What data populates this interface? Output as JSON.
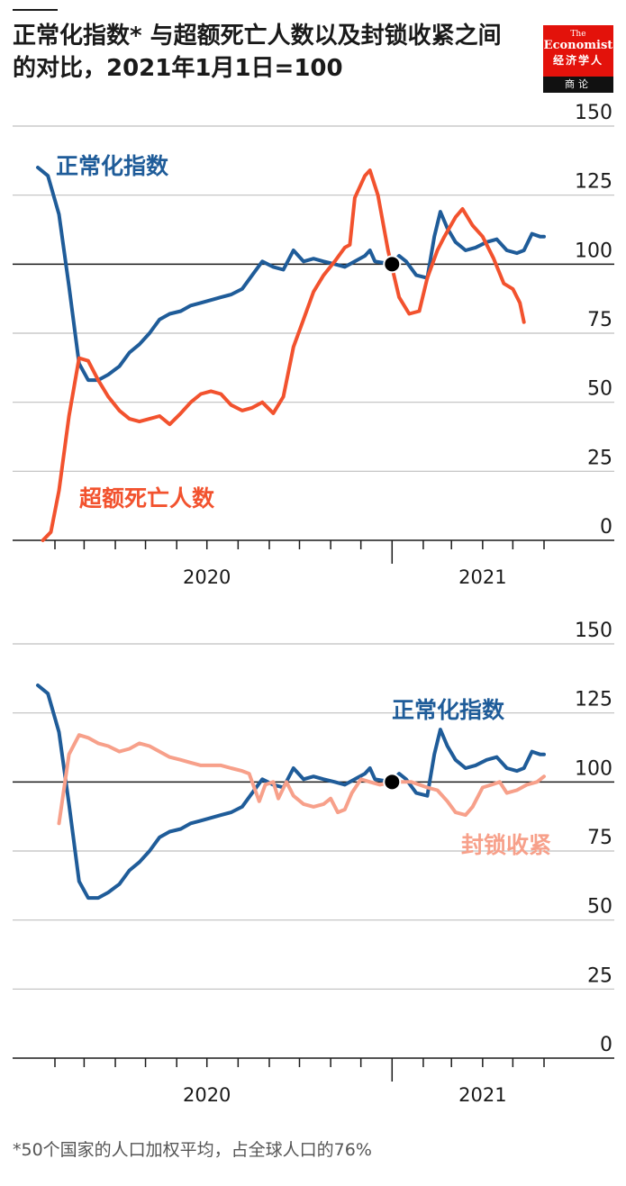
{
  "title": "正常化指数* 与超额死亡人数以及封锁收紧之间的对比，2021年1月1日=100",
  "logo": {
    "line1": "The",
    "line2": "Economist",
    "line3": "经济学人",
    "line4": "商论"
  },
  "footnote": "*50个国家的人口加权平均，占全球人口的76%",
  "colors": {
    "normalcy": "#1f5c99",
    "excess_deaths": "#f2522e",
    "lockdown": "#f7a08a",
    "axis": "#1a1a1a",
    "grid": "#bfbfbf"
  },
  "chart_data": [
    {
      "type": "line",
      "yticks": [
        0,
        25,
        50,
        75,
        100,
        125,
        150
      ],
      "ylim": [
        0,
        150
      ],
      "xlim": [
        "2020-01-15",
        "2021-06-01"
      ],
      "xtick_labels": [
        {
          "label": "2020",
          "at": "2020-07-01"
        },
        {
          "label": "2021",
          "at": "2021-04-01"
        }
      ],
      "reference_point": {
        "x": "2021-01-01",
        "y": 100
      },
      "series": [
        {
          "name": "正常化指数",
          "color_key": "normalcy",
          "points": [
            [
              "2020-01-15",
              135
            ],
            [
              "2020-01-25",
              132
            ],
            [
              "2020-02-05",
              118
            ],
            [
              "2020-02-15",
              92
            ],
            [
              "2020-02-25",
              64
            ],
            [
              "2020-03-05",
              58
            ],
            [
              "2020-03-15",
              58
            ],
            [
              "2020-03-25",
              60
            ],
            [
              "2020-04-05",
              63
            ],
            [
              "2020-04-15",
              68
            ],
            [
              "2020-04-25",
              71
            ],
            [
              "2020-05-05",
              75
            ],
            [
              "2020-05-15",
              80
            ],
            [
              "2020-05-25",
              82
            ],
            [
              "2020-06-05",
              83
            ],
            [
              "2020-06-15",
              85
            ],
            [
              "2020-06-25",
              86
            ],
            [
              "2020-07-05",
              87
            ],
            [
              "2020-07-15",
              88
            ],
            [
              "2020-07-25",
              89
            ],
            [
              "2020-08-05",
              91
            ],
            [
              "2020-08-15",
              96
            ],
            [
              "2020-08-25",
              101
            ],
            [
              "2020-09-05",
              99
            ],
            [
              "2020-09-15",
              98
            ],
            [
              "2020-09-25",
              105
            ],
            [
              "2020-10-05",
              101
            ],
            [
              "2020-10-15",
              102
            ],
            [
              "2020-10-25",
              101
            ],
            [
              "2020-11-05",
              100
            ],
            [
              "2020-11-15",
              99
            ],
            [
              "2020-11-25",
              101
            ],
            [
              "2020-12-05",
              103
            ],
            [
              "2020-12-10",
              105
            ],
            [
              "2020-12-15",
              101
            ],
            [
              "2021-01-01",
              100
            ],
            [
              "2021-01-08",
              103
            ],
            [
              "2021-01-15",
              101
            ],
            [
              "2021-01-25",
              96
            ],
            [
              "2021-02-05",
              95
            ],
            [
              "2021-02-12",
              110
            ],
            [
              "2021-02-18",
              119
            ],
            [
              "2021-02-25",
              113
            ],
            [
              "2021-03-05",
              108
            ],
            [
              "2021-03-15",
              105
            ],
            [
              "2021-03-25",
              106
            ],
            [
              "2021-04-05",
              108
            ],
            [
              "2021-04-15",
              109
            ],
            [
              "2021-04-25",
              105
            ],
            [
              "2021-05-05",
              104
            ],
            [
              "2021-05-12",
              105
            ],
            [
              "2021-05-20",
              111
            ],
            [
              "2021-05-28",
              110
            ],
            [
              "2021-06-01",
              110
            ]
          ]
        },
        {
          "name": "超额死亡人数",
          "color_key": "excess_deaths",
          "points": [
            [
              "2020-01-20",
              0
            ],
            [
              "2020-01-28",
              3
            ],
            [
              "2020-02-05",
              18
            ],
            [
              "2020-02-15",
              45
            ],
            [
              "2020-02-25",
              66
            ],
            [
              "2020-03-05",
              65
            ],
            [
              "2020-03-15",
              58
            ],
            [
              "2020-03-25",
              52
            ],
            [
              "2020-04-05",
              47
            ],
            [
              "2020-04-15",
              44
            ],
            [
              "2020-04-25",
              43
            ],
            [
              "2020-05-05",
              44
            ],
            [
              "2020-05-15",
              45
            ],
            [
              "2020-05-25",
              42
            ],
            [
              "2020-06-05",
              46
            ],
            [
              "2020-06-15",
              50
            ],
            [
              "2020-06-25",
              53
            ],
            [
              "2020-07-05",
              54
            ],
            [
              "2020-07-15",
              53
            ],
            [
              "2020-07-25",
              49
            ],
            [
              "2020-08-05",
              47
            ],
            [
              "2020-08-15",
              48
            ],
            [
              "2020-08-25",
              50
            ],
            [
              "2020-09-05",
              46
            ],
            [
              "2020-09-15",
              52
            ],
            [
              "2020-09-25",
              70
            ],
            [
              "2020-10-05",
              80
            ],
            [
              "2020-10-15",
              90
            ],
            [
              "2020-10-25",
              96
            ],
            [
              "2020-11-05",
              101
            ],
            [
              "2020-11-15",
              106
            ],
            [
              "2020-11-20",
              107
            ],
            [
              "2020-11-25",
              124
            ],
            [
              "2020-12-05",
              132
            ],
            [
              "2020-12-10",
              134
            ],
            [
              "2020-12-18",
              125
            ],
            [
              "2020-12-28",
              105
            ],
            [
              "2021-01-08",
              88
            ],
            [
              "2021-01-18",
              82
            ],
            [
              "2021-01-28",
              83
            ],
            [
              "2021-02-05",
              95
            ],
            [
              "2021-02-15",
              105
            ],
            [
              "2021-02-22",
              110
            ],
            [
              "2021-03-05",
              117
            ],
            [
              "2021-03-12",
              120
            ],
            [
              "2021-03-22",
              114
            ],
            [
              "2021-04-01",
              110
            ],
            [
              "2021-04-12",
              102
            ],
            [
              "2021-04-22",
              93
            ],
            [
              "2021-05-01",
              91
            ],
            [
              "2021-05-08",
              86
            ],
            [
              "2021-05-12",
              79
            ]
          ]
        }
      ],
      "labels": {
        "normalcy": "正常化指数",
        "excess_deaths": "超额死亡人数"
      }
    },
    {
      "type": "line",
      "yticks": [
        0,
        25,
        50,
        75,
        100,
        125,
        150
      ],
      "ylim": [
        0,
        150
      ],
      "xlim": [
        "2020-01-15",
        "2021-06-01"
      ],
      "xtick_labels": [
        {
          "label": "2020",
          "at": "2020-07-01"
        },
        {
          "label": "2021",
          "at": "2021-04-01"
        }
      ],
      "reference_point": {
        "x": "2021-01-01",
        "y": 100
      },
      "series": [
        {
          "name": "正常化指数",
          "color_key": "normalcy",
          "points": [
            [
              "2020-01-15",
              135
            ],
            [
              "2020-01-25",
              132
            ],
            [
              "2020-02-05",
              118
            ],
            [
              "2020-02-15",
              92
            ],
            [
              "2020-02-25",
              64
            ],
            [
              "2020-03-05",
              58
            ],
            [
              "2020-03-15",
              58
            ],
            [
              "2020-03-25",
              60
            ],
            [
              "2020-04-05",
              63
            ],
            [
              "2020-04-15",
              68
            ],
            [
              "2020-04-25",
              71
            ],
            [
              "2020-05-05",
              75
            ],
            [
              "2020-05-15",
              80
            ],
            [
              "2020-05-25",
              82
            ],
            [
              "2020-06-05",
              83
            ],
            [
              "2020-06-15",
              85
            ],
            [
              "2020-06-25",
              86
            ],
            [
              "2020-07-05",
              87
            ],
            [
              "2020-07-15",
              88
            ],
            [
              "2020-07-25",
              89
            ],
            [
              "2020-08-05",
              91
            ],
            [
              "2020-08-15",
              96
            ],
            [
              "2020-08-25",
              101
            ],
            [
              "2020-09-05",
              99
            ],
            [
              "2020-09-15",
              98
            ],
            [
              "2020-09-25",
              105
            ],
            [
              "2020-10-05",
              101
            ],
            [
              "2020-10-15",
              102
            ],
            [
              "2020-10-25",
              101
            ],
            [
              "2020-11-05",
              100
            ],
            [
              "2020-11-15",
              99
            ],
            [
              "2020-11-25",
              101
            ],
            [
              "2020-12-05",
              103
            ],
            [
              "2020-12-10",
              105
            ],
            [
              "2020-12-15",
              101
            ],
            [
              "2021-01-01",
              100
            ],
            [
              "2021-01-08",
              103
            ],
            [
              "2021-01-15",
              101
            ],
            [
              "2021-01-25",
              96
            ],
            [
              "2021-02-05",
              95
            ],
            [
              "2021-02-12",
              110
            ],
            [
              "2021-02-18",
              119
            ],
            [
              "2021-02-25",
              113
            ],
            [
              "2021-03-05",
              108
            ],
            [
              "2021-03-15",
              105
            ],
            [
              "2021-03-25",
              106
            ],
            [
              "2021-04-05",
              108
            ],
            [
              "2021-04-15",
              109
            ],
            [
              "2021-04-25",
              105
            ],
            [
              "2021-05-05",
              104
            ],
            [
              "2021-05-12",
              105
            ],
            [
              "2021-05-20",
              111
            ],
            [
              "2021-05-28",
              110
            ],
            [
              "2021-06-01",
              110
            ]
          ]
        },
        {
          "name": "封锁收紧",
          "color_key": "lockdown",
          "points": [
            [
              "2020-02-05",
              85
            ],
            [
              "2020-02-15",
              110
            ],
            [
              "2020-02-25",
              117
            ],
            [
              "2020-03-05",
              116
            ],
            [
              "2020-03-15",
              114
            ],
            [
              "2020-03-25",
              113
            ],
            [
              "2020-04-05",
              111
            ],
            [
              "2020-04-15",
              112
            ],
            [
              "2020-04-25",
              114
            ],
            [
              "2020-05-05",
              113
            ],
            [
              "2020-05-15",
              111
            ],
            [
              "2020-05-25",
              109
            ],
            [
              "2020-06-05",
              108
            ],
            [
              "2020-06-15",
              107
            ],
            [
              "2020-06-25",
              106
            ],
            [
              "2020-07-05",
              106
            ],
            [
              "2020-07-15",
              106
            ],
            [
              "2020-07-25",
              105
            ],
            [
              "2020-08-05",
              104
            ],
            [
              "2020-08-12",
              103
            ],
            [
              "2020-08-18",
              97
            ],
            [
              "2020-08-22",
              93
            ],
            [
              "2020-08-28",
              99
            ],
            [
              "2020-09-05",
              100
            ],
            [
              "2020-09-10",
              94
            ],
            [
              "2020-09-18",
              100
            ],
            [
              "2020-09-25",
              95
            ],
            [
              "2020-10-05",
              92
            ],
            [
              "2020-10-15",
              91
            ],
            [
              "2020-10-25",
              92
            ],
            [
              "2020-11-01",
              94
            ],
            [
              "2020-11-08",
              89
            ],
            [
              "2020-11-15",
              90
            ],
            [
              "2020-11-22",
              96
            ],
            [
              "2020-12-01",
              101
            ],
            [
              "2020-12-10",
              100
            ],
            [
              "2020-12-20",
              99
            ],
            [
              "2021-01-01",
              100
            ],
            [
              "2021-01-10",
              100
            ],
            [
              "2021-01-20",
              100
            ],
            [
              "2021-01-28",
              99
            ],
            [
              "2021-02-05",
              98
            ],
            [
              "2021-02-15",
              97
            ],
            [
              "2021-02-25",
              93
            ],
            [
              "2021-03-05",
              89
            ],
            [
              "2021-03-15",
              88
            ],
            [
              "2021-03-22",
              91
            ],
            [
              "2021-04-01",
              98
            ],
            [
              "2021-04-10",
              99
            ],
            [
              "2021-04-18",
              100
            ],
            [
              "2021-04-25",
              96
            ],
            [
              "2021-05-05",
              97
            ],
            [
              "2021-05-15",
              99
            ],
            [
              "2021-05-25",
              100
            ],
            [
              "2021-06-01",
              102
            ]
          ]
        }
      ],
      "labels": {
        "normalcy": "正常化指数",
        "lockdown": "封锁收紧"
      }
    }
  ]
}
